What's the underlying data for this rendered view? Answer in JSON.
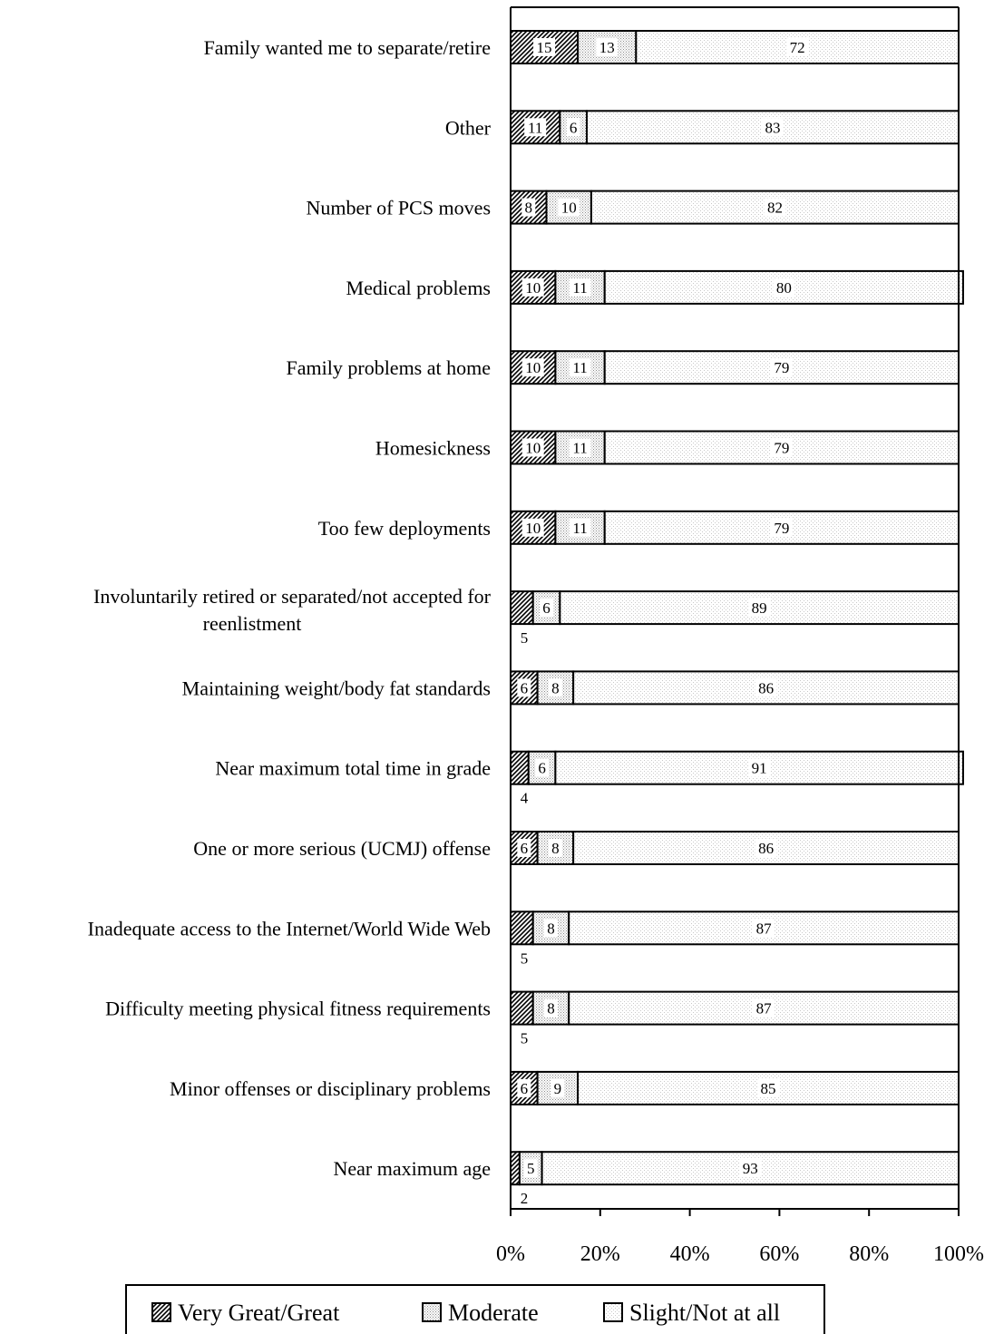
{
  "chart_data": {
    "type": "bar",
    "orientation": "horizontal",
    "stacked": true,
    "categories": [
      "Family wanted me to separate/retire",
      "Other",
      "Number of PCS moves",
      "Medical problems",
      "Family problems at home",
      "Homesickness",
      "Too few deployments",
      "Involuntarily retired or separated/not accepted for reenlistment",
      "Maintaining weight/body fat standards",
      "Near maximum total time in grade",
      "One or more serious (UCMJ) offense",
      "Inadequate access to the Internet/World Wide Web",
      "Difficulty meeting physical fitness requirements",
      "Minor offenses or disciplinary problems",
      "Near maximum age"
    ],
    "series": [
      {
        "name": "Very Great/Great",
        "values": [
          15,
          11,
          8,
          10,
          10,
          10,
          10,
          5,
          6,
          4,
          6,
          5,
          5,
          6,
          2
        ]
      },
      {
        "name": "Moderate",
        "values": [
          13,
          6,
          10,
          11,
          11,
          11,
          11,
          6,
          8,
          6,
          8,
          8,
          8,
          9,
          5
        ]
      },
      {
        "name": "Slight/Not at all",
        "values": [
          72,
          83,
          82,
          80,
          79,
          79,
          79,
          89,
          86,
          91,
          86,
          87,
          87,
          85,
          93
        ]
      }
    ],
    "xlim": [
      0,
      100
    ],
    "x_ticks": [
      "0%",
      "20%",
      "40%",
      "60%",
      "80%",
      "100%"
    ],
    "legend_position": "bottom",
    "grid": false
  }
}
